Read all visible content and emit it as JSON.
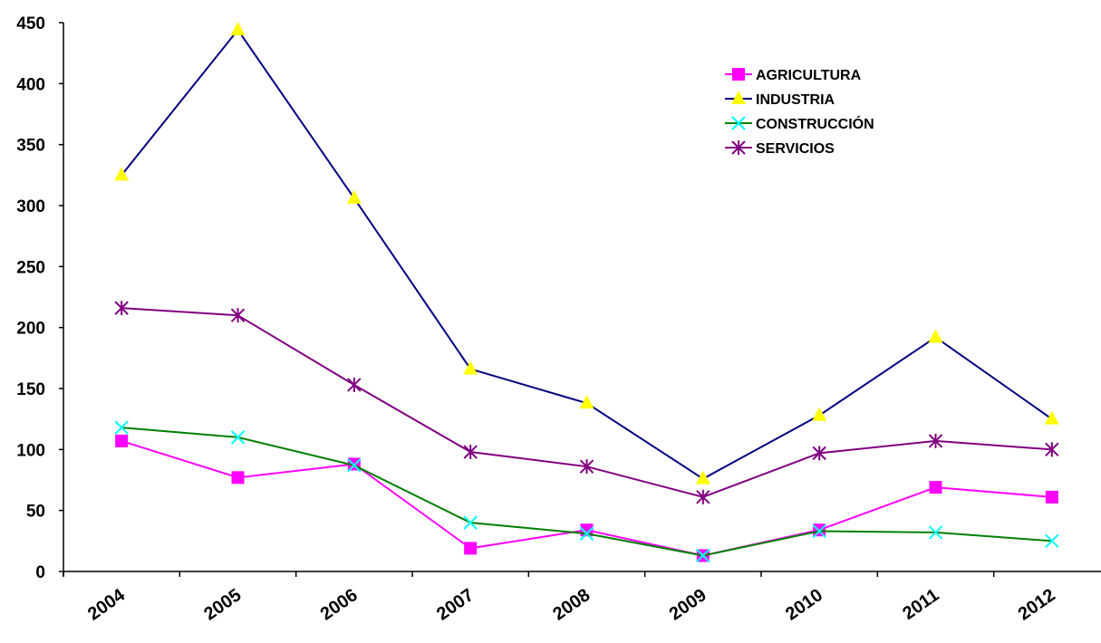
{
  "chart_data": {
    "type": "line",
    "title": "",
    "xlabel": "",
    "ylabel": "",
    "ylim": [
      0,
      450
    ],
    "yticks": [
      0,
      50,
      100,
      150,
      200,
      250,
      300,
      350,
      400,
      450
    ],
    "categories": [
      "2004",
      "2005",
      "2006",
      "2007",
      "2008",
      "2009",
      "2010",
      "2011",
      "2012"
    ],
    "grid": false,
    "legend_position": "top-right",
    "series": [
      {
        "name": "AGRICULTURA",
        "color": "#ff00ff",
        "marker": "square",
        "marker_color": "#ff00ff",
        "values": [
          107,
          77,
          88,
          19,
          34,
          13,
          34,
          69,
          61
        ]
      },
      {
        "name": "INDUSTRIA",
        "color": "#000080",
        "marker": "triangle",
        "marker_color": "#ffff00",
        "values": [
          325,
          444,
          306,
          166,
          138,
          76,
          128,
          192,
          125
        ]
      },
      {
        "name": "CONSTRUCCIÓN",
        "color": "#008000",
        "marker": "x",
        "marker_color": "#00ffff",
        "values": [
          118,
          110,
          87,
          40,
          31,
          13,
          33,
          32,
          25
        ]
      },
      {
        "name": "SERVICIOS",
        "color": "#800080",
        "marker": "star",
        "marker_color": "#800080",
        "values": [
          216,
          210,
          153,
          98,
          86,
          61,
          97,
          107,
          100
        ]
      }
    ]
  }
}
